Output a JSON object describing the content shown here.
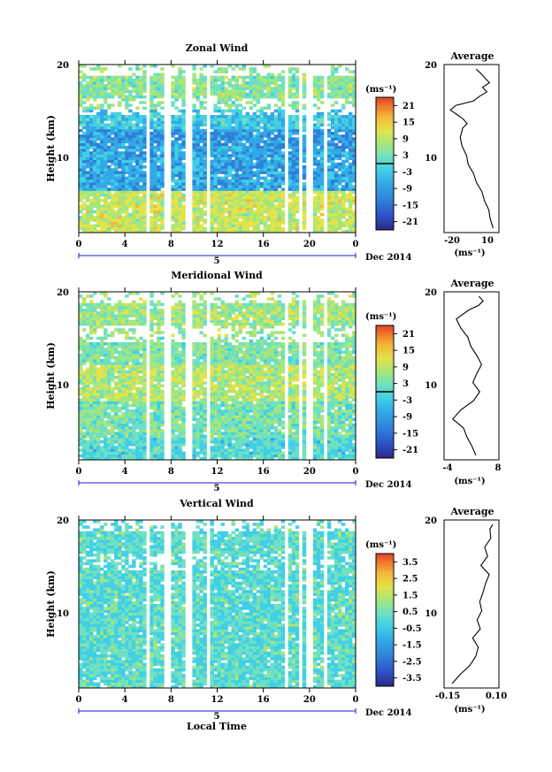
{
  "chart_data": [
    {
      "type": "heatmap",
      "title": "Zonal Wind",
      "xlabel": "Local Time",
      "ylabel": "Height (km)",
      "x_ticks": [
        "0",
        "4",
        "8",
        "12",
        "16",
        "20",
        "0"
      ],
      "y_ticks": [
        "10",
        "20"
      ],
      "xlim": [
        0,
        24
      ],
      "ylim": [
        1.5,
        20
      ],
      "date_tick": "5",
      "date_label": "Dec 2014",
      "colorbar": {
        "unit": "(ms⁻¹)",
        "ticks": [
          "21",
          "15",
          "9",
          "3",
          "-3",
          "-9",
          "-15",
          "-21"
        ],
        "range": [
          -24,
          24
        ]
      },
      "gaps_hours": [
        6.0,
        7.6,
        9.6,
        11.2,
        18.0,
        19.2,
        20.0,
        21.4
      ],
      "profile": {
        "title": "Average",
        "xlabel": "(ms⁻¹)",
        "x_ticks": [
          "-20",
          "10"
        ],
        "xlim": [
          -26,
          14
        ],
        "y_ticks": [
          "10",
          "20"
        ],
        "height": [
          2,
          3,
          4,
          5,
          6,
          7,
          8,
          9,
          10,
          11,
          12,
          12.5,
          13,
          13.5,
          14,
          14.5,
          15,
          15.5,
          16,
          16.5,
          17,
          17.5,
          18,
          18.5,
          19,
          19.5
        ],
        "value": [
          9,
          8,
          7,
          4,
          1,
          -2,
          -5,
          -8,
          -10,
          -13,
          -15,
          -14,
          -12,
          -10,
          -12,
          -16,
          -21,
          -18,
          -5,
          0,
          5,
          2,
          7,
          4,
          1,
          -2
        ]
      }
    },
    {
      "type": "heatmap",
      "title": "Meridional Wind",
      "xlabel": "Local Time",
      "ylabel": "Height (km)",
      "x_ticks": [
        "0",
        "4",
        "8",
        "12",
        "16",
        "20",
        "0"
      ],
      "y_ticks": [
        "10",
        "20"
      ],
      "xlim": [
        0,
        24
      ],
      "ylim": [
        1.5,
        20
      ],
      "date_tick": "5",
      "date_label": "Dec 2014",
      "colorbar": {
        "unit": "(ms⁻¹)",
        "ticks": [
          "21",
          "15",
          "9",
          "3",
          "-3",
          "-9",
          "-15",
          "-21"
        ],
        "range": [
          -24,
          24
        ]
      },
      "gaps_hours": [
        6.0,
        7.6,
        9.6,
        11.2,
        18.0,
        19.2,
        20.0,
        21.4
      ],
      "profile": {
        "title": "Average",
        "xlabel": "(ms⁻¹)",
        "x_ticks": [
          "-4",
          "8"
        ],
        "xlim": [
          -5,
          8
        ],
        "y_ticks": [
          "10",
          "20"
        ],
        "height": [
          2,
          3,
          4,
          5,
          6,
          7,
          8,
          9,
          10,
          11,
          12,
          13,
          14,
          15,
          16,
          17,
          18,
          18.5,
          19,
          19.5
        ],
        "value": [
          2.5,
          1.5,
          0.5,
          -0.5,
          -3,
          -1,
          2,
          3.5,
          2,
          2.5,
          4,
          3,
          1.5,
          0.5,
          -1,
          -2,
          1,
          3,
          4,
          3
        ]
      }
    },
    {
      "type": "heatmap",
      "title": "Vertical Wind",
      "xlabel": "Local Time",
      "ylabel": "Height (km)",
      "x_ticks": [
        "0",
        "4",
        "8",
        "12",
        "16",
        "20",
        "0"
      ],
      "y_ticks": [
        "10",
        "20"
      ],
      "xlim": [
        0,
        24
      ],
      "ylim": [
        1.5,
        20
      ],
      "date_tick": "5",
      "date_label": "Dec 2014",
      "colorbar": {
        "unit": "(ms⁻¹)",
        "ticks": [
          "3.5",
          "2.5",
          "1.5",
          "0.5",
          "-0.5",
          "-1.5",
          "-2.5",
          "-3.5"
        ],
        "range": [
          -4,
          4
        ]
      },
      "gaps_hours": [
        6.0,
        7.6,
        9.6,
        11.2,
        18.0,
        19.2,
        20.0,
        21.4
      ],
      "profile": {
        "title": "Average",
        "xlabel": "(ms⁻¹)",
        "x_ticks": [
          "-0.15",
          "0.10"
        ],
        "xlim": [
          -0.16,
          0.12
        ],
        "y_ticks": [
          "10",
          "20"
        ],
        "height": [
          2,
          3,
          4,
          5,
          6,
          7,
          8,
          9,
          10,
          11,
          12,
          13,
          14,
          15,
          16,
          17,
          18,
          19,
          19.5
        ],
        "value": [
          -0.12,
          -0.08,
          -0.03,
          0.0,
          0.01,
          -0.01,
          0.02,
          0.01,
          0.03,
          0.02,
          0.04,
          0.05,
          0.07,
          0.03,
          0.06,
          0.05,
          0.08,
          0.07,
          0.09
        ]
      }
    }
  ],
  "colors": {
    "scale": [
      "#2a2880",
      "#2e4fc4",
      "#2f7fd8",
      "#33a9e6",
      "#41cfe6",
      "#6fe0c0",
      "#a6e67a",
      "#e3e34a",
      "#f5b83a",
      "#ee7a2c",
      "#e0402a"
    ]
  }
}
